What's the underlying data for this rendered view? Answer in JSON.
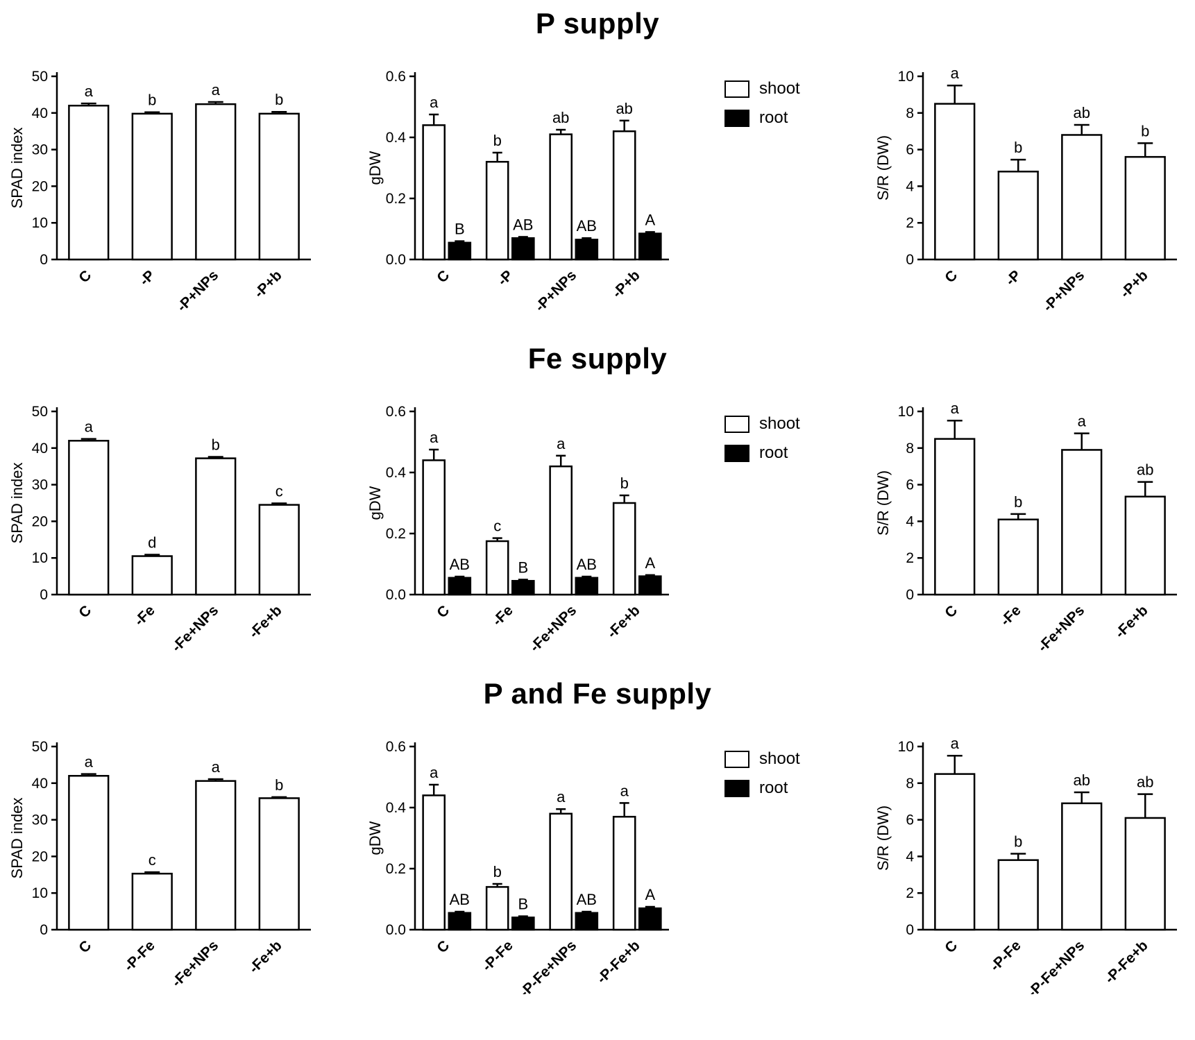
{
  "colors": {
    "shoot_fill": "#ffffff",
    "root_fill": "#000000",
    "axis": "#000000",
    "background": "#ffffff"
  },
  "legend": {
    "items": [
      {
        "label": "shoot",
        "fill": "#ffffff"
      },
      {
        "label": "root",
        "fill": "#000000"
      }
    ]
  },
  "chart_data": {
    "type": "bar",
    "grid": false,
    "legend_position": "between gDW and S/R charts, each row",
    "sections": [
      {
        "title": "P supply",
        "charts": [
          {
            "type": "bar",
            "ylabel": "SPAD index",
            "ylim": [
              0,
              50
            ],
            "yticks": [
              "0",
              "10",
              "20",
              "30",
              "40",
              "50"
            ],
            "categories": [
              "C",
              "-P",
              "-P+NPs",
              "-P+b"
            ],
            "show_legend": false,
            "series": [
              {
                "name": "SPAD index",
                "fill": "#ffffff",
                "values": [
                  42.0,
                  39.8,
                  42.4,
                  39.8
                ],
                "errors": [
                  0.6,
                  0.4,
                  0.6,
                  0.5
                ],
                "letters": [
                  "a",
                  "b",
                  "a",
                  "b"
                ]
              }
            ]
          },
          {
            "type": "bar",
            "ylabel": "gDW",
            "ylim": [
              0,
              0.6
            ],
            "yticks": [
              "0.0",
              "0.2",
              "0.4",
              "0.6"
            ],
            "categories": [
              "C",
              "-P",
              "-P+NPs",
              "-P+b"
            ],
            "show_legend": true,
            "series": [
              {
                "name": "shoot",
                "fill": "#ffffff",
                "values": [
                  0.44,
                  0.32,
                  0.41,
                  0.42
                ],
                "errors": [
                  0.035,
                  0.03,
                  0.015,
                  0.035
                ],
                "letters": [
                  "a",
                  "b",
                  "ab",
                  "ab"
                ]
              },
              {
                "name": "root",
                "fill": "#000000",
                "values": [
                  0.055,
                  0.07,
                  0.065,
                  0.085
                ],
                "errors": [
                  0.005,
                  0.004,
                  0.005,
                  0.005
                ],
                "letters": [
                  "B",
                  "AB",
                  "AB",
                  "A"
                ]
              }
            ]
          },
          {
            "type": "bar",
            "ylabel": "S/R (DW)",
            "ylim": [
              0,
              10
            ],
            "yticks": [
              "0",
              "2",
              "4",
              "6",
              "8",
              "10"
            ],
            "categories": [
              "C",
              "-P",
              "-P+NPs",
              "-P+b"
            ],
            "show_legend": false,
            "series": [
              {
                "name": "S/R",
                "fill": "#ffffff",
                "values": [
                  8.5,
                  4.8,
                  6.8,
                  5.6
                ],
                "errors": [
                  1.0,
                  0.65,
                  0.55,
                  0.75
                ],
                "letters": [
                  "a",
                  "b",
                  "ab",
                  "b"
                ]
              }
            ]
          }
        ]
      },
      {
        "title": "Fe supply",
        "charts": [
          {
            "type": "bar",
            "ylabel": "SPAD index",
            "ylim": [
              0,
              50
            ],
            "yticks": [
              "0",
              "10",
              "20",
              "30",
              "40",
              "50"
            ],
            "categories": [
              "C",
              "-Fe",
              "-Fe+NPs",
              "-Fe+b"
            ],
            "show_legend": false,
            "series": [
              {
                "name": "SPAD index",
                "fill": "#ffffff",
                "values": [
                  42.0,
                  10.5,
                  37.2,
                  24.5
                ],
                "errors": [
                  0.5,
                  0.4,
                  0.4,
                  0.4
                ],
                "letters": [
                  "a",
                  "d",
                  "b",
                  "c"
                ]
              }
            ]
          },
          {
            "type": "bar",
            "ylabel": "gDW",
            "ylim": [
              0,
              0.6
            ],
            "yticks": [
              "0.0",
              "0.2",
              "0.4",
              "0.6"
            ],
            "categories": [
              "C",
              "-Fe",
              "-Fe+NPs",
              "-Fe+b"
            ],
            "show_legend": true,
            "series": [
              {
                "name": "shoot",
                "fill": "#ffffff",
                "values": [
                  0.44,
                  0.175,
                  0.42,
                  0.3
                ],
                "errors": [
                  0.035,
                  0.01,
                  0.035,
                  0.025
                ],
                "letters": [
                  "a",
                  "c",
                  "a",
                  "b"
                ]
              },
              {
                "name": "root",
                "fill": "#000000",
                "values": [
                  0.055,
                  0.045,
                  0.055,
                  0.06
                ],
                "errors": [
                  0.004,
                  0.004,
                  0.004,
                  0.004
                ],
                "letters": [
                  "AB",
                  "B",
                  "AB",
                  "A"
                ]
              }
            ]
          },
          {
            "type": "bar",
            "ylabel": "S/R (DW)",
            "ylim": [
              0,
              10
            ],
            "yticks": [
              "0",
              "2",
              "4",
              "6",
              "8",
              "10"
            ],
            "categories": [
              "C",
              "-Fe",
              "-Fe+NPs",
              "-Fe+b"
            ],
            "show_legend": false,
            "series": [
              {
                "name": "S/R",
                "fill": "#ffffff",
                "values": [
                  8.5,
                  4.1,
                  7.9,
                  5.35
                ],
                "errors": [
                  1.0,
                  0.3,
                  0.9,
                  0.8
                ],
                "letters": [
                  "a",
                  "b",
                  "a",
                  "ab"
                ]
              }
            ]
          }
        ]
      },
      {
        "title": "P and Fe supply",
        "charts": [
          {
            "type": "bar",
            "ylabel": "SPAD index",
            "ylim": [
              0,
              50
            ],
            "yticks": [
              "0",
              "10",
              "20",
              "30",
              "40",
              "50"
            ],
            "categories": [
              "C",
              "-P-Fe",
              "-Fe+NPs",
              "-Fe+b"
            ],
            "show_legend": false,
            "series": [
              {
                "name": "SPAD index",
                "fill": "#ffffff",
                "values": [
                  42.0,
                  15.3,
                  40.6,
                  35.9
                ],
                "errors": [
                  0.5,
                  0.4,
                  0.5,
                  0.3
                ],
                "letters": [
                  "a",
                  "c",
                  "a",
                  "b"
                ]
              }
            ]
          },
          {
            "type": "bar",
            "ylabel": "gDW",
            "ylim": [
              0,
              0.6
            ],
            "yticks": [
              "0.0",
              "0.2",
              "0.4",
              "0.6"
            ],
            "categories": [
              "C",
              "-P-Fe",
              "-P-Fe+NPs",
              "-P-Fe+b"
            ],
            "show_legend": true,
            "series": [
              {
                "name": "shoot",
                "fill": "#ffffff",
                "values": [
                  0.44,
                  0.14,
                  0.38,
                  0.37
                ],
                "errors": [
                  0.035,
                  0.01,
                  0.015,
                  0.045
                ],
                "letters": [
                  "a",
                  "b",
                  "a",
                  "a"
                ]
              },
              {
                "name": "root",
                "fill": "#000000",
                "values": [
                  0.055,
                  0.04,
                  0.055,
                  0.07
                ],
                "errors": [
                  0.004,
                  0.004,
                  0.004,
                  0.005
                ],
                "letters": [
                  "AB",
                  "B",
                  "AB",
                  "A"
                ]
              }
            ]
          },
          {
            "type": "bar",
            "ylabel": "S/R (DW)",
            "ylim": [
              0,
              10
            ],
            "yticks": [
              "0",
              "2",
              "4",
              "6",
              "8",
              "10"
            ],
            "categories": [
              "C",
              "-P-Fe",
              "-P-Fe+NPs",
              "-P-Fe+b"
            ],
            "show_legend": false,
            "series": [
              {
                "name": "S/R",
                "fill": "#ffffff",
                "values": [
                  8.5,
                  3.8,
                  6.9,
                  6.1
                ],
                "errors": [
                  1.0,
                  0.35,
                  0.6,
                  1.3
                ],
                "letters": [
                  "a",
                  "b",
                  "ab",
                  "ab"
                ]
              }
            ]
          }
        ]
      }
    ]
  }
}
